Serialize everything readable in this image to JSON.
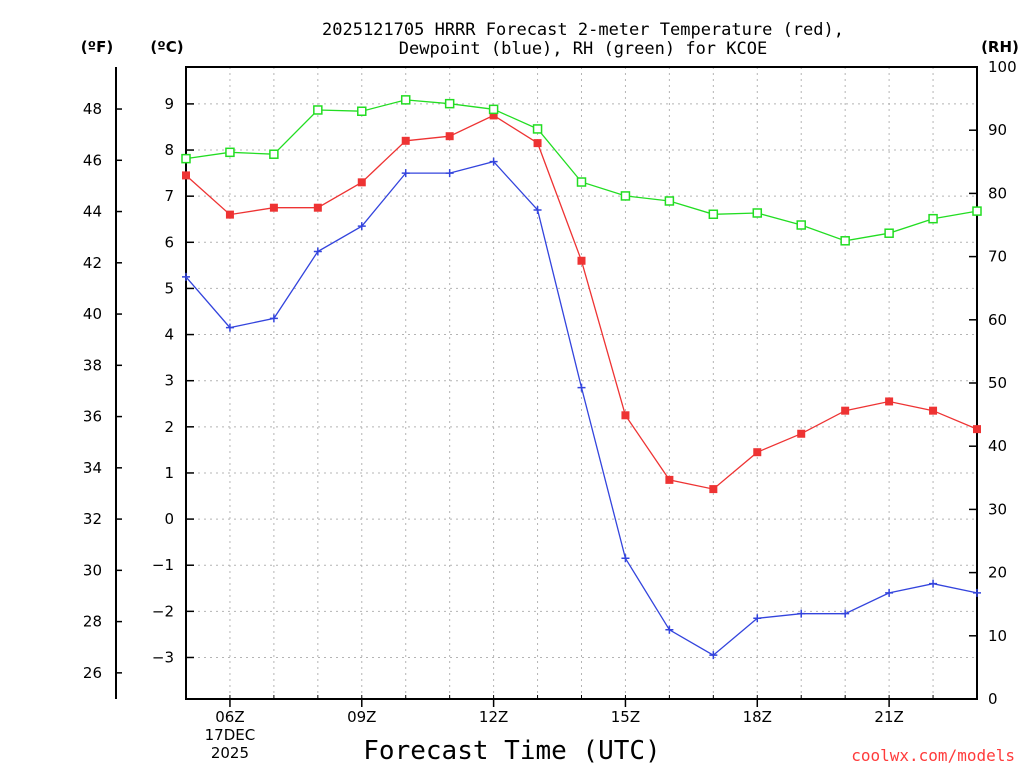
{
  "chart_data": {
    "type": "line",
    "title_line1": "2025121705 HRRR Forecast 2-meter Temperature (red),",
    "title_line2": "Dewpoint (blue), RH (green) for KCOE",
    "xlabel": "Forecast Time (UTC)",
    "credit": "coolwx.com/models",
    "credit_color": "#ff3b3b",
    "axis_units": {
      "fahrenheit": "(ºF)",
      "celsius": "(ºC)",
      "rh": "(RH)"
    },
    "x_hours": [
      5,
      6,
      7,
      8,
      9,
      10,
      11,
      12,
      13,
      14,
      15,
      16,
      17,
      18,
      19,
      20,
      21,
      22,
      23
    ],
    "xlim": [
      5,
      23
    ],
    "x_ticks": [
      {
        "hour": 6,
        "label": "06Z",
        "date": "17DEC",
        "year": "2025"
      },
      {
        "hour": 9,
        "label": "09Z"
      },
      {
        "hour": 12,
        "label": "12Z"
      },
      {
        "hour": 15,
        "label": "15Z"
      },
      {
        "hour": 18,
        "label": "18Z"
      },
      {
        "hour": 21,
        "label": "21Z"
      }
    ],
    "celsius_lim": [
      -3.9,
      9.8
    ],
    "celsius_ticks": [
      "9",
      "8",
      "7",
      "6",
      "5",
      "4",
      "3",
      "2",
      "1",
      "0",
      "−1",
      "−2",
      "−3"
    ],
    "fahrenheit_ticks": [
      "48",
      "46",
      "44",
      "42",
      "40",
      "38",
      "36",
      "34",
      "32",
      "30",
      "28",
      "26"
    ],
    "rh_lim": [
      0,
      100
    ],
    "rh_ticks": [
      "100",
      "90",
      "80",
      "70",
      "60",
      "50",
      "40",
      "30",
      "20",
      "10",
      "0"
    ],
    "series": [
      {
        "name": "Temperature",
        "unit": "C",
        "color": "#ee3333",
        "marker": "filled-square",
        "values": [
          7.45,
          6.6,
          6.75,
          6.75,
          7.3,
          8.2,
          8.3,
          8.75,
          8.15,
          5.6,
          2.25,
          0.85,
          0.65,
          1.45,
          1.85,
          2.35,
          2.55,
          2.35,
          1.95
        ]
      },
      {
        "name": "Dewpoint",
        "unit": "C",
        "color": "#3344dd",
        "marker": "plus",
        "values": [
          5.25,
          4.15,
          4.35,
          5.8,
          6.35,
          7.5,
          7.5,
          7.75,
          6.7,
          2.85,
          -0.85,
          -2.4,
          -2.95,
          -2.15,
          -2.05,
          -2.05,
          -1.6,
          -1.4,
          -1.6
        ]
      },
      {
        "name": "RH",
        "unit": "%",
        "color": "#22dd22",
        "marker": "open-square",
        "values": [
          85.5,
          86.5,
          86.2,
          93.2,
          93.0,
          94.8,
          94.2,
          93.3,
          90.2,
          81.8,
          79.6,
          78.8,
          76.7,
          76.9,
          75.0,
          72.5,
          73.7,
          76.0,
          77.2
        ]
      }
    ]
  }
}
